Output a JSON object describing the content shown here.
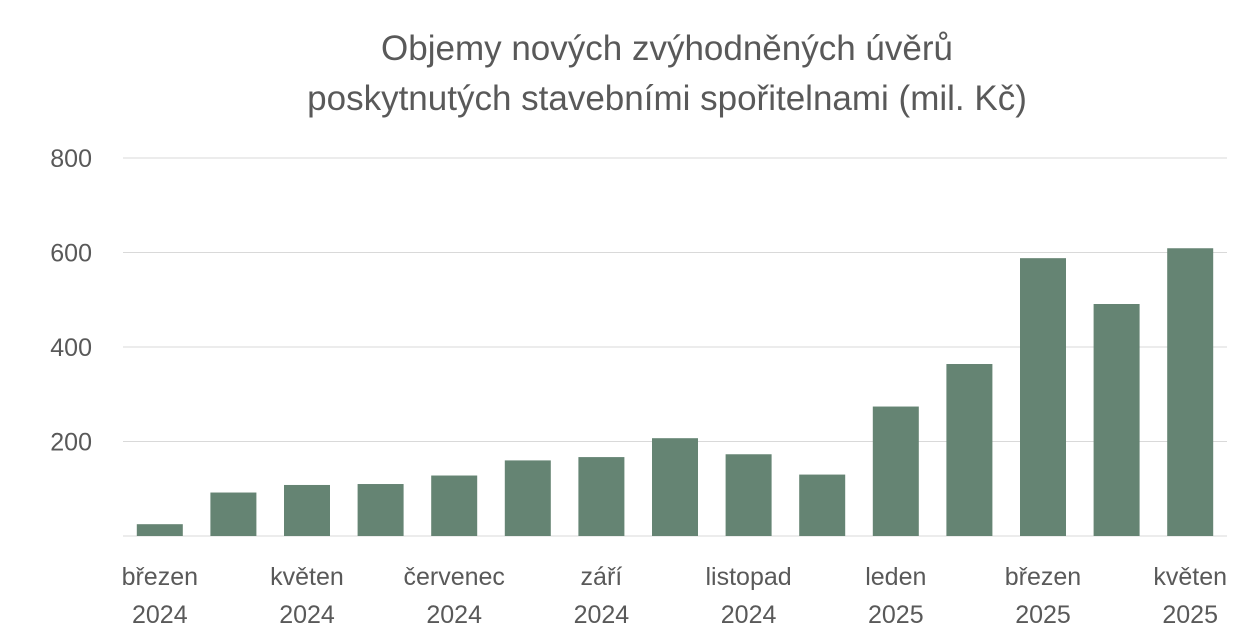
{
  "chart_data": {
    "type": "bar",
    "title": [
      "Objemy nových zvýhodněných úvěrů",
      "poskytnutých stavebními spořitelnami (mil. Kč)"
    ],
    "categories": [
      [
        "březen",
        "2024"
      ],
      [
        "",
        ""
      ],
      [
        "květen",
        "2024"
      ],
      [
        "",
        ""
      ],
      [
        "červenec",
        "2024"
      ],
      [
        "",
        ""
      ],
      [
        "září",
        "2024"
      ],
      [
        "",
        ""
      ],
      [
        "listopad",
        "2024"
      ],
      [
        "",
        ""
      ],
      [
        "leden",
        "2025"
      ],
      [
        "",
        ""
      ],
      [
        "březen",
        "2025"
      ],
      [
        "",
        ""
      ],
      [
        "květen",
        "2025"
      ]
    ],
    "values": [
      25,
      92,
      108,
      110,
      128,
      160,
      167,
      207,
      173,
      130,
      274,
      364,
      588,
      491,
      609
    ],
    "ylim": [
      0,
      800
    ],
    "yticks": [
      200,
      400,
      600,
      800
    ],
    "grid": true,
    "xlabel": "",
    "ylabel": "",
    "bar_color": "#658473",
    "grid_color": "#d9d9d9"
  }
}
